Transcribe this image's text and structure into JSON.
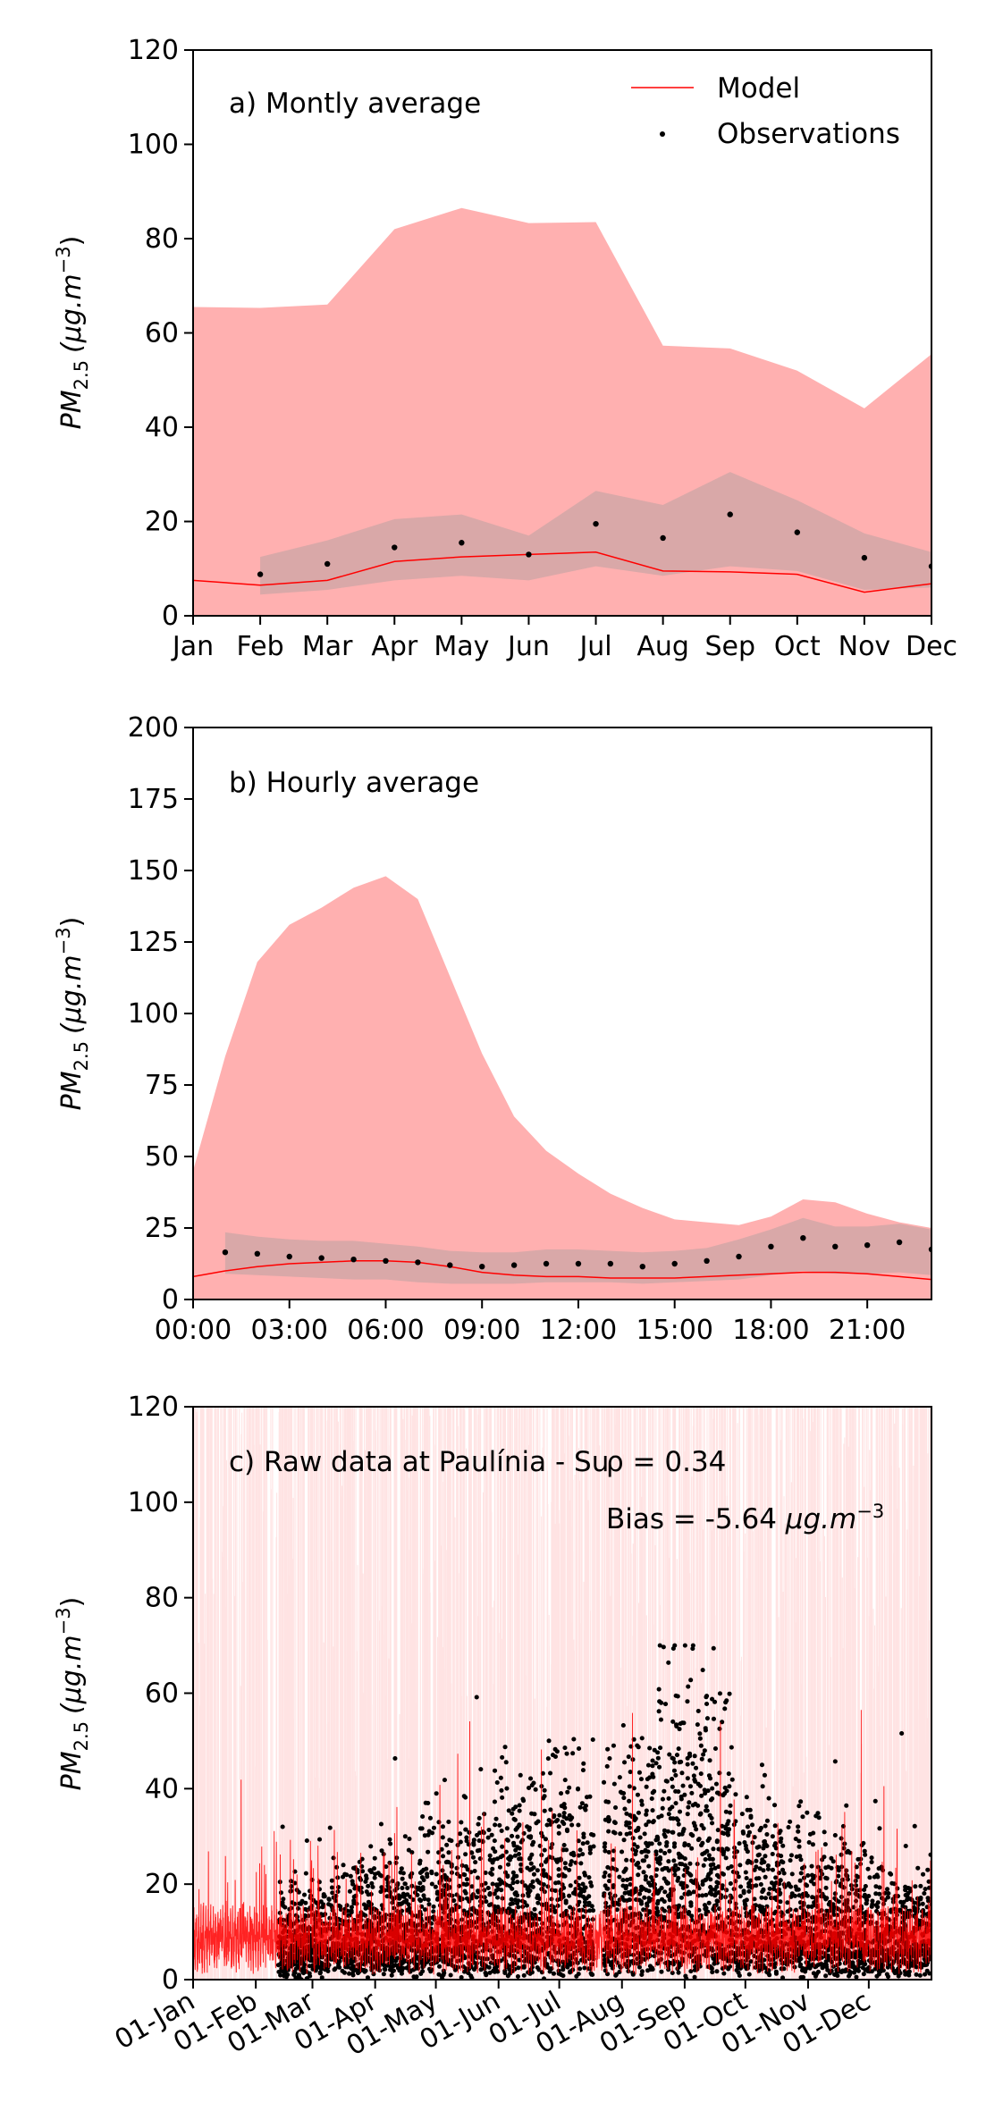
{
  "chart_data": [
    {
      "type": "line",
      "annotation": "a) Montly average",
      "ylabel": "PM2.5 (μg.m⁻³)",
      "ylabel_parts": {
        "base": "PM",
        "sub": "2.5",
        "unit": "(μg.m",
        "exp": "−3",
        "close": ")"
      },
      "ylim": [
        0,
        120
      ],
      "yticks": [
        0,
        20,
        40,
        60,
        80,
        100,
        120
      ],
      "xlim": [
        0,
        11
      ],
      "x_categories": [
        "Jan",
        "Feb",
        "Mar",
        "Apr",
        "May",
        "Jun",
        "Jul",
        "Aug",
        "Sep",
        "Oct",
        "Nov",
        "Dec"
      ],
      "legend": {
        "position": "top-right",
        "entries": [
          "Model",
          "Observations"
        ]
      },
      "model": {
        "name": "Model",
        "color": "#ff0000",
        "band_color": "#ffb0b0",
        "mean": [
          7.5,
          6.5,
          7.5,
          11.5,
          12.5,
          13,
          13.5,
          9.5,
          9.3,
          8.8,
          5,
          6.8
        ],
        "band_low": [
          0,
          0,
          0,
          0,
          0,
          0,
          0,
          0,
          0,
          0,
          0,
          0
        ],
        "band_high": [
          65.5,
          65.3,
          66,
          82,
          86.5,
          83.3,
          83.5,
          57.3,
          56.7,
          52,
          44,
          55.5
        ]
      },
      "observations": {
        "name": "Observations",
        "color": "#000000",
        "band_color": "#d9d9d9",
        "x": [
          1,
          2,
          3,
          4,
          5,
          6,
          7,
          8,
          9,
          10,
          11
        ],
        "mean": [
          8.8,
          11,
          14.5,
          15.5,
          13,
          19.5,
          16.5,
          21.5,
          17.7,
          12.3,
          10.5
        ],
        "band_low": [
          4.5,
          5.5,
          7.5,
          8.5,
          7.5,
          10.5,
          8.5,
          10.5,
          9.5,
          5.5,
          6
        ],
        "band_high": [
          12.5,
          16,
          20.5,
          21.5,
          17,
          26.5,
          23.5,
          30.5,
          24.5,
          17.5,
          13.5
        ]
      }
    },
    {
      "type": "line",
      "annotation": "b) Hourly average",
      "ylabel": "PM2.5 (μg.m⁻³)",
      "ylabel_parts": {
        "base": "PM",
        "sub": "2.5",
        "unit": "(μg.m",
        "exp": "−3",
        "close": ")"
      },
      "ylim": [
        0,
        200
      ],
      "yticks": [
        0,
        25,
        50,
        75,
        100,
        125,
        150,
        175,
        200
      ],
      "xlim": [
        0,
        23
      ],
      "x_ticks": [
        0,
        3,
        6,
        9,
        12,
        15,
        18,
        21
      ],
      "x_tick_labels": [
        "00:00",
        "03:00",
        "06:00",
        "09:00",
        "12:00",
        "15:00",
        "18:00",
        "21:00"
      ],
      "model": {
        "name": "Model",
        "color": "#ff0000",
        "band_color": "#ffb0b0",
        "mean": [
          8,
          10,
          11.5,
          12.5,
          13,
          13.5,
          13.5,
          13,
          11.5,
          9.5,
          8.5,
          8,
          8,
          7.5,
          7.5,
          7.5,
          8,
          8.5,
          9,
          9.5,
          9.5,
          9,
          8,
          7
        ],
        "band_low": [
          0,
          0,
          0,
          0,
          0,
          0,
          0,
          0,
          0,
          0,
          0,
          0,
          0,
          0,
          0,
          0,
          0,
          0,
          0,
          0,
          0,
          0,
          0,
          0
        ],
        "band_high": [
          45,
          85,
          118,
          131,
          137,
          144,
          148,
          140,
          113,
          86,
          64,
          52,
          44,
          37,
          32,
          28,
          27,
          26,
          29,
          35,
          34,
          30,
          27,
          25
        ]
      },
      "observations": {
        "name": "Observations",
        "color": "#000000",
        "band_color": "#d9d9d9",
        "x": [
          1,
          2,
          3,
          4,
          5,
          6,
          7,
          8,
          9,
          10,
          11,
          12,
          13,
          14,
          15,
          16,
          17,
          18,
          19,
          20,
          21,
          22,
          23
        ],
        "mean": [
          16.5,
          16,
          15,
          14.5,
          14,
          13.5,
          13,
          12,
          11.5,
          12,
          12.5,
          12.5,
          12.5,
          11.5,
          12.5,
          13.5,
          15,
          18.5,
          21.5,
          18.5,
          19,
          20,
          17.5
        ],
        "band_low": [
          9,
          8.5,
          8,
          7.5,
          7,
          7,
          6,
          5.5,
          5.5,
          5.5,
          6,
          6,
          6,
          5.5,
          6,
          6.5,
          7,
          8.5,
          10,
          9,
          9,
          9.5,
          8.5
        ],
        "band_high": [
          23.5,
          22,
          21,
          20.5,
          20.5,
          19.5,
          18.5,
          17,
          16.5,
          16.5,
          17.5,
          17.5,
          17,
          16.5,
          17,
          18,
          21,
          24.5,
          28.5,
          25.5,
          25.5,
          26.5,
          24.5
        ]
      }
    },
    {
      "type": "line",
      "annotation": "c) Raw data at Paulínia - Su",
      "stat_r": "ρ = 0.34",
      "stat_bias": "Bias = -5.64 μg.m⁻³",
      "stat_bias_parts": {
        "prefix": "Bias = -5.64 ",
        "unit": "μg.m",
        "exp": "−3"
      },
      "ylabel": "PM2.5 (μg.m⁻³)",
      "ylabel_parts": {
        "base": "PM",
        "sub": "2.5",
        "unit": "(μg.m",
        "exp": "−3",
        "close": ")"
      },
      "ylim": [
        0,
        120
      ],
      "yticks": [
        0,
        20,
        40,
        60,
        80,
        100,
        120
      ],
      "xlim": [
        0,
        365
      ],
      "x_ticks": [
        0,
        31,
        59,
        90,
        120,
        151,
        181,
        212,
        243,
        273,
        304,
        334
      ],
      "x_tick_labels": [
        "01-Jan",
        "01-Feb",
        "01-Mar",
        "01-Apr",
        "01-May",
        "01-Jun",
        "01-Jul",
        "01-Aug",
        "01-Sep",
        "01-Oct",
        "01-Nov",
        "01-Dec"
      ],
      "observation_gap_days": [
        [
          0,
          42
        ],
        [
          198,
          203
        ]
      ],
      "model_band_color": "#ffe3e3",
      "model_color": "#ff0000",
      "observation_color": "#000000"
    }
  ]
}
